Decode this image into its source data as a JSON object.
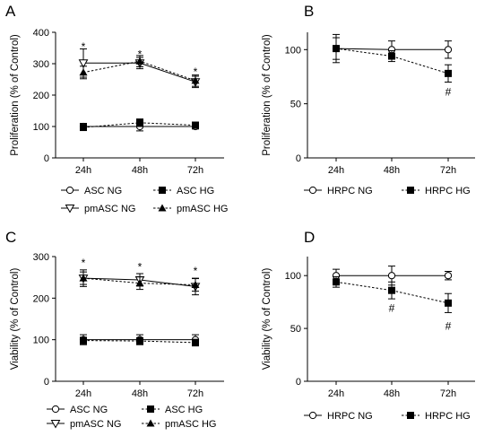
{
  "chart_data": [
    {
      "panel": "A",
      "type": "line",
      "ylabel": "Proliferation (% of Control)",
      "categories": [
        "24h",
        "48h",
        "72h"
      ],
      "ylim": [
        0,
        400
      ],
      "yticks": [
        0,
        100,
        200,
        300,
        400
      ],
      "series": [
        {
          "name": "ASC NG",
          "values": [
            100,
            100,
            100
          ],
          "errors": [
            10,
            14,
            8
          ],
          "marker": "open-circle",
          "dashed": false
        },
        {
          "name": "ASC HG",
          "values": [
            97,
            112,
            104
          ],
          "errors": [
            9,
            12,
            10
          ],
          "marker": "filled-square",
          "dashed": true
        },
        {
          "name": "pmASC NG",
          "values": [
            302,
            302,
            242
          ],
          "errors": [
            45,
            18,
            18
          ],
          "marker": "open-triangle-down",
          "dashed": false
        },
        {
          "name": "pmASC HG",
          "values": [
            272,
            308,
            246
          ],
          "errors": [
            20,
            18,
            18
          ],
          "marker": "filled-triangle-up",
          "dashed": true
        }
      ],
      "annotations": [
        {
          "text": "*",
          "category": "24h",
          "y": 355
        },
        {
          "text": "*",
          "category": "48h",
          "y": 330
        },
        {
          "text": "*",
          "category": "72h",
          "y": 275
        }
      ]
    },
    {
      "panel": "B",
      "type": "line",
      "ylabel": "Proliferation (% of Control)",
      "categories": [
        "24h",
        "48h",
        "72h"
      ],
      "ylim": [
        0,
        116
      ],
      "yticks": [
        0,
        50,
        100
      ],
      "series": [
        {
          "name": "HRPC NG",
          "values": [
            101,
            100,
            100
          ],
          "errors": [
            13,
            8,
            8
          ],
          "marker": "open-circle",
          "dashed": false
        },
        {
          "name": "HRPC HG",
          "values": [
            101,
            94,
            78
          ],
          "errors": [
            10,
            5,
            8
          ],
          "marker": "filled-square",
          "dashed": true
        }
      ],
      "annotations": [
        {
          "text": "#",
          "category": "72h",
          "y": 61
        }
      ]
    },
    {
      "panel": "C",
      "type": "line",
      "ylabel": "Viability (% of Control)",
      "categories": [
        "24h",
        "48h",
        "72h"
      ],
      "ylim": [
        0,
        300
      ],
      "yticks": [
        0,
        100,
        200,
        300
      ],
      "series": [
        {
          "name": "ASC NG",
          "values": [
            100,
            100,
            100
          ],
          "errors": [
            12,
            12,
            12
          ],
          "marker": "open-circle",
          "dashed": false
        },
        {
          "name": "ASC HG",
          "values": [
            98,
            97,
            93
          ],
          "errors": [
            8,
            8,
            8
          ],
          "marker": "filled-square",
          "dashed": true
        },
        {
          "name": "pmASC NG",
          "values": [
            248,
            244,
            228
          ],
          "errors": [
            15,
            15,
            20
          ],
          "marker": "open-triangle-down",
          "dashed": false
        },
        {
          "name": "pmASC HG",
          "values": [
            248,
            236,
            232
          ],
          "errors": [
            20,
            15,
            15
          ],
          "marker": "filled-triangle-up",
          "dashed": true
        }
      ],
      "annotations": [
        {
          "text": "*",
          "category": "24h",
          "y": 285
        },
        {
          "text": "*",
          "category": "48h",
          "y": 275
        },
        {
          "text": "*",
          "category": "72h",
          "y": 265
        }
      ]
    },
    {
      "panel": "D",
      "type": "line",
      "ylabel": "Viability (% of Control)",
      "categories": [
        "24h",
        "48h",
        "72h"
      ],
      "ylim": [
        0,
        118
      ],
      "yticks": [
        0,
        50,
        100
      ],
      "series": [
        {
          "name": "HRPC NG",
          "values": [
            100,
            100,
            100
          ],
          "errors": [
            6,
            9,
            4
          ],
          "marker": "open-circle",
          "dashed": false
        },
        {
          "name": "HRPC HG",
          "values": [
            94,
            86,
            74
          ],
          "errors": [
            5,
            8,
            9
          ],
          "marker": "filled-square",
          "dashed": true
        }
      ],
      "annotations": [
        {
          "text": "#",
          "category": "48h",
          "y": 69
        },
        {
          "text": "#",
          "category": "72h",
          "y": 52
        }
      ]
    }
  ]
}
